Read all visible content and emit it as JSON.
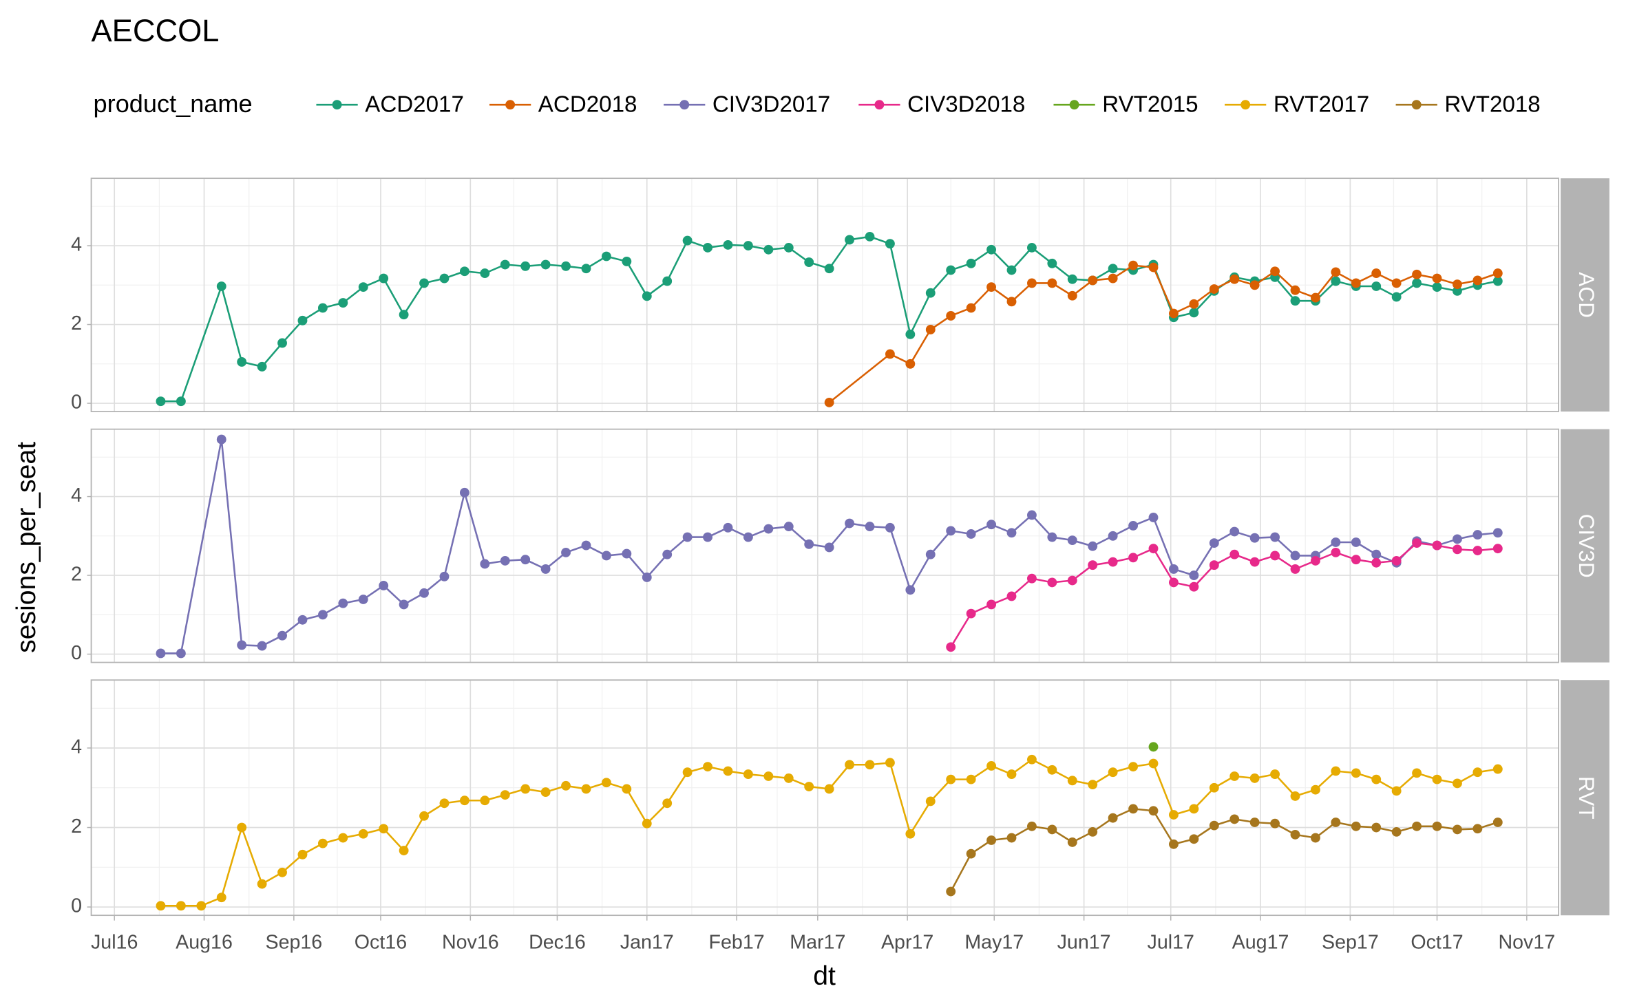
{
  "chart_data": {
    "type": "line",
    "title": "AECCOL",
    "legend_title": "product_name",
    "xlabel": "dt",
    "ylabel": "sesions_per_seat",
    "facets": [
      "ACD",
      "CIV3D",
      "RVT"
    ],
    "xlim": [
      "2016-06-23",
      "2017-11-12"
    ],
    "xticks": [
      {
        "value": "2016-07-01",
        "label": "Jul16"
      },
      {
        "value": "2016-08-01",
        "label": "Aug16"
      },
      {
        "value": "2016-09-01",
        "label": "Sep16"
      },
      {
        "value": "2016-10-01",
        "label": "Oct16"
      },
      {
        "value": "2016-11-01",
        "label": "Nov16"
      },
      {
        "value": "2016-12-01",
        "label": "Dec16"
      },
      {
        "value": "2017-01-01",
        "label": "Jan17"
      },
      {
        "value": "2017-02-01",
        "label": "Feb17"
      },
      {
        "value": "2017-03-01",
        "label": "Mar17"
      },
      {
        "value": "2017-04-01",
        "label": "Apr17"
      },
      {
        "value": "2017-05-01",
        "label": "May17"
      },
      {
        "value": "2017-06-01",
        "label": "Jun17"
      },
      {
        "value": "2017-07-01",
        "label": "Jul17"
      },
      {
        "value": "2017-08-01",
        "label": "Aug17"
      },
      {
        "value": "2017-09-01",
        "label": "Sep17"
      },
      {
        "value": "2017-10-01",
        "label": "Oct17"
      },
      {
        "value": "2017-11-01",
        "label": "Nov17"
      }
    ],
    "ylim": [
      -0.21,
      5.71
    ],
    "yticks": [
      0,
      2,
      4
    ],
    "grid": true,
    "legend": "top",
    "series": [
      {
        "name": "ACD2017",
        "color": "#1b9e77",
        "facet": "ACD",
        "x": [
          "2016-07-17",
          "2016-07-24",
          "2016-08-07",
          "2016-08-14",
          "2016-08-21",
          "2016-08-28",
          "2016-09-04",
          "2016-09-11",
          "2016-09-18",
          "2016-09-25",
          "2016-10-02",
          "2016-10-09",
          "2016-10-16",
          "2016-10-23",
          "2016-10-30",
          "2016-11-06",
          "2016-11-13",
          "2016-11-20",
          "2016-11-27",
          "2016-12-04",
          "2016-12-11",
          "2016-12-18",
          "2016-12-25",
          "2017-01-01",
          "2017-01-08",
          "2017-01-15",
          "2017-01-22",
          "2017-01-29",
          "2017-02-05",
          "2017-02-12",
          "2017-02-19",
          "2017-02-26",
          "2017-03-05",
          "2017-03-12",
          "2017-03-19",
          "2017-03-26",
          "2017-04-02",
          "2017-04-09",
          "2017-04-16",
          "2017-04-23",
          "2017-04-30",
          "2017-05-07",
          "2017-05-14",
          "2017-05-21",
          "2017-05-28",
          "2017-06-04",
          "2017-06-11",
          "2017-06-18",
          "2017-06-25",
          "2017-07-02",
          "2017-07-09",
          "2017-07-16",
          "2017-07-23",
          "2017-07-30",
          "2017-08-06",
          "2017-08-13",
          "2017-08-20",
          "2017-08-27",
          "2017-09-03",
          "2017-09-10",
          "2017-09-17",
          "2017-09-24",
          "2017-10-01",
          "2017-10-08",
          "2017-10-15",
          "2017-10-22"
        ],
        "values": [
          0.05,
          0.05,
          2.97,
          1.05,
          0.93,
          1.53,
          2.1,
          2.42,
          2.55,
          2.95,
          3.17,
          2.25,
          3.05,
          3.17,
          3.35,
          3.3,
          3.52,
          3.48,
          3.52,
          3.48,
          3.42,
          3.73,
          3.6,
          2.72,
          3.1,
          4.13,
          3.95,
          4.02,
          4.0,
          3.9,
          3.95,
          3.58,
          3.42,
          4.15,
          4.23,
          4.05,
          1.75,
          2.8,
          3.38,
          3.55,
          3.9,
          3.38,
          3.95,
          3.55,
          3.15,
          3.12,
          3.42,
          3.38,
          3.52,
          2.18,
          2.3,
          2.85,
          3.2,
          3.1,
          3.2,
          2.6,
          2.6,
          3.1,
          2.97,
          2.97,
          2.7,
          3.05,
          2.95,
          2.85,
          3.0,
          3.1
        ]
      },
      {
        "name": "ACD2018",
        "color": "#d95f02",
        "facet": "ACD",
        "x": [
          "2017-03-05",
          "2017-03-26",
          "2017-04-02",
          "2017-04-09",
          "2017-04-16",
          "2017-04-23",
          "2017-04-30",
          "2017-05-07",
          "2017-05-14",
          "2017-05-21",
          "2017-05-28",
          "2017-06-04",
          "2017-06-11",
          "2017-06-18",
          "2017-06-25",
          "2017-07-02",
          "2017-07-09",
          "2017-07-16",
          "2017-07-23",
          "2017-07-30",
          "2017-08-06",
          "2017-08-13",
          "2017-08-20",
          "2017-08-27",
          "2017-09-03",
          "2017-09-10",
          "2017-09-17",
          "2017-09-24",
          "2017-10-01",
          "2017-10-08",
          "2017-10-15",
          "2017-10-22"
        ],
        "values": [
          0.02,
          1.25,
          1.0,
          1.87,
          2.22,
          2.42,
          2.95,
          2.58,
          3.05,
          3.05,
          2.73,
          3.12,
          3.17,
          3.5,
          3.45,
          2.28,
          2.52,
          2.9,
          3.15,
          3.0,
          3.35,
          2.87,
          2.68,
          3.33,
          3.05,
          3.3,
          3.05,
          3.27,
          3.17,
          3.02,
          3.12,
          3.3
        ]
      },
      {
        "name": "CIV3D2017",
        "color": "#7570b3",
        "facet": "CIV3D",
        "x": [
          "2016-07-17",
          "2016-07-24",
          "2016-08-07",
          "2016-08-14",
          "2016-08-21",
          "2016-08-28",
          "2016-09-04",
          "2016-09-11",
          "2016-09-18",
          "2016-09-25",
          "2016-10-02",
          "2016-10-09",
          "2016-10-16",
          "2016-10-23",
          "2016-10-30",
          "2016-11-06",
          "2016-11-13",
          "2016-11-20",
          "2016-11-27",
          "2016-12-04",
          "2016-12-11",
          "2016-12-18",
          "2016-12-25",
          "2017-01-01",
          "2017-01-08",
          "2017-01-15",
          "2017-01-22",
          "2017-01-29",
          "2017-02-05",
          "2017-02-12",
          "2017-02-19",
          "2017-02-26",
          "2017-03-05",
          "2017-03-12",
          "2017-03-19",
          "2017-03-26",
          "2017-04-02",
          "2017-04-09",
          "2017-04-16",
          "2017-04-23",
          "2017-04-30",
          "2017-05-07",
          "2017-05-14",
          "2017-05-21",
          "2017-05-28",
          "2017-06-04",
          "2017-06-11",
          "2017-06-18",
          "2017-06-25",
          "2017-07-02",
          "2017-07-09",
          "2017-07-16",
          "2017-07-23",
          "2017-07-30",
          "2017-08-06",
          "2017-08-13",
          "2017-08-20",
          "2017-08-27",
          "2017-09-03",
          "2017-09-10",
          "2017-09-17",
          "2017-09-24",
          "2017-10-01",
          "2017-10-08",
          "2017-10-15",
          "2017-10-22"
        ],
        "values": [
          0.02,
          0.02,
          5.45,
          0.23,
          0.21,
          0.47,
          0.87,
          1.0,
          1.29,
          1.39,
          1.74,
          1.26,
          1.55,
          1.97,
          4.1,
          2.29,
          2.37,
          2.4,
          2.16,
          2.58,
          2.76,
          2.5,
          2.55,
          1.95,
          2.53,
          2.97,
          2.97,
          3.21,
          2.97,
          3.18,
          3.24,
          2.79,
          2.71,
          3.32,
          3.24,
          3.21,
          1.63,
          2.53,
          3.13,
          3.05,
          3.29,
          3.08,
          3.53,
          2.97,
          2.89,
          2.74,
          3.0,
          3.26,
          3.47,
          2.16,
          2.0,
          2.82,
          3.11,
          2.95,
          2.97,
          2.5,
          2.5,
          2.84,
          2.84,
          2.53,
          2.32,
          2.87,
          2.76,
          2.92,
          3.03,
          3.08
        ]
      },
      {
        "name": "CIV3D2018",
        "color": "#e7298a",
        "facet": "CIV3D",
        "x": [
          "2017-04-16",
          "2017-04-23",
          "2017-04-30",
          "2017-05-07",
          "2017-05-14",
          "2017-05-21",
          "2017-05-28",
          "2017-06-04",
          "2017-06-11",
          "2017-06-18",
          "2017-06-25",
          "2017-07-02",
          "2017-07-09",
          "2017-07-16",
          "2017-07-23",
          "2017-07-30",
          "2017-08-06",
          "2017-08-13",
          "2017-08-20",
          "2017-08-27",
          "2017-09-03",
          "2017-09-10",
          "2017-09-17",
          "2017-09-24",
          "2017-10-01",
          "2017-10-08",
          "2017-10-15",
          "2017-10-22"
        ],
        "values": [
          0.18,
          1.03,
          1.26,
          1.47,
          1.92,
          1.82,
          1.87,
          2.26,
          2.34,
          2.45,
          2.68,
          1.82,
          1.71,
          2.26,
          2.53,
          2.34,
          2.5,
          2.16,
          2.37,
          2.58,
          2.4,
          2.32,
          2.37,
          2.82,
          2.76,
          2.66,
          2.63,
          2.68
        ]
      },
      {
        "name": "RVT2015",
        "color": "#66a61e",
        "facet": "RVT",
        "x": [
          "2017-06-25"
        ],
        "values": [
          4.03
        ]
      },
      {
        "name": "RVT2017",
        "color": "#e6ab02",
        "facet": "RVT",
        "x": [
          "2016-07-17",
          "2016-07-24",
          "2016-07-31",
          "2016-08-07",
          "2016-08-14",
          "2016-08-21",
          "2016-08-28",
          "2016-09-04",
          "2016-09-11",
          "2016-09-18",
          "2016-09-25",
          "2016-10-02",
          "2016-10-09",
          "2016-10-16",
          "2016-10-23",
          "2016-10-30",
          "2016-11-06",
          "2016-11-13",
          "2016-11-20",
          "2016-11-27",
          "2016-12-04",
          "2016-12-11",
          "2016-12-18",
          "2016-12-25",
          "2017-01-01",
          "2017-01-08",
          "2017-01-15",
          "2017-01-22",
          "2017-01-29",
          "2017-02-05",
          "2017-02-12",
          "2017-02-19",
          "2017-02-26",
          "2017-03-05",
          "2017-03-12",
          "2017-03-19",
          "2017-03-26",
          "2017-04-02",
          "2017-04-09",
          "2017-04-16",
          "2017-04-23",
          "2017-04-30",
          "2017-05-07",
          "2017-05-14",
          "2017-05-21",
          "2017-05-28",
          "2017-06-04",
          "2017-06-11",
          "2017-06-18",
          "2017-06-25",
          "2017-07-02",
          "2017-07-09",
          "2017-07-16",
          "2017-07-23",
          "2017-07-30",
          "2017-08-06",
          "2017-08-13",
          "2017-08-20",
          "2017-08-27",
          "2017-09-03",
          "2017-09-10",
          "2017-09-17",
          "2017-09-24",
          "2017-10-01",
          "2017-10-08",
          "2017-10-15",
          "2017-10-22"
        ],
        "values": [
          0.03,
          0.03,
          0.03,
          0.24,
          2.0,
          0.58,
          0.87,
          1.32,
          1.6,
          1.74,
          1.84,
          1.97,
          1.42,
          2.29,
          2.61,
          2.68,
          2.68,
          2.82,
          2.97,
          2.89,
          3.05,
          2.97,
          3.13,
          2.97,
          2.1,
          2.61,
          3.39,
          3.53,
          3.42,
          3.34,
          3.29,
          3.24,
          3.03,
          2.97,
          3.58,
          3.58,
          3.63,
          1.84,
          2.66,
          3.21,
          3.21,
          3.55,
          3.34,
          3.71,
          3.45,
          3.18,
          3.08,
          3.39,
          3.53,
          3.61,
          2.32,
          2.47,
          3.0,
          3.29,
          3.24,
          3.34,
          2.79,
          2.95,
          3.42,
          3.37,
          3.21,
          2.92,
          3.37,
          3.21,
          3.11,
          3.39,
          3.47
        ]
      },
      {
        "name": "RVT2018",
        "color": "#a6761d",
        "facet": "RVT",
        "x": [
          "2017-04-16",
          "2017-04-23",
          "2017-04-30",
          "2017-05-07",
          "2017-05-14",
          "2017-05-21",
          "2017-05-28",
          "2017-06-04",
          "2017-06-11",
          "2017-06-18",
          "2017-06-25",
          "2017-07-02",
          "2017-07-09",
          "2017-07-16",
          "2017-07-23",
          "2017-07-30",
          "2017-08-06",
          "2017-08-13",
          "2017-08-20",
          "2017-08-27",
          "2017-09-03",
          "2017-09-10",
          "2017-09-17",
          "2017-09-24",
          "2017-10-01",
          "2017-10-08",
          "2017-10-15",
          "2017-10-22"
        ],
        "values": [
          0.39,
          1.34,
          1.68,
          1.74,
          2.03,
          1.95,
          1.63,
          1.89,
          2.24,
          2.47,
          2.42,
          1.58,
          1.71,
          2.05,
          2.21,
          2.13,
          2.1,
          1.82,
          1.74,
          2.13,
          2.03,
          2.0,
          1.89,
          2.03,
          2.03,
          1.95,
          1.97,
          2.13
        ]
      }
    ]
  }
}
